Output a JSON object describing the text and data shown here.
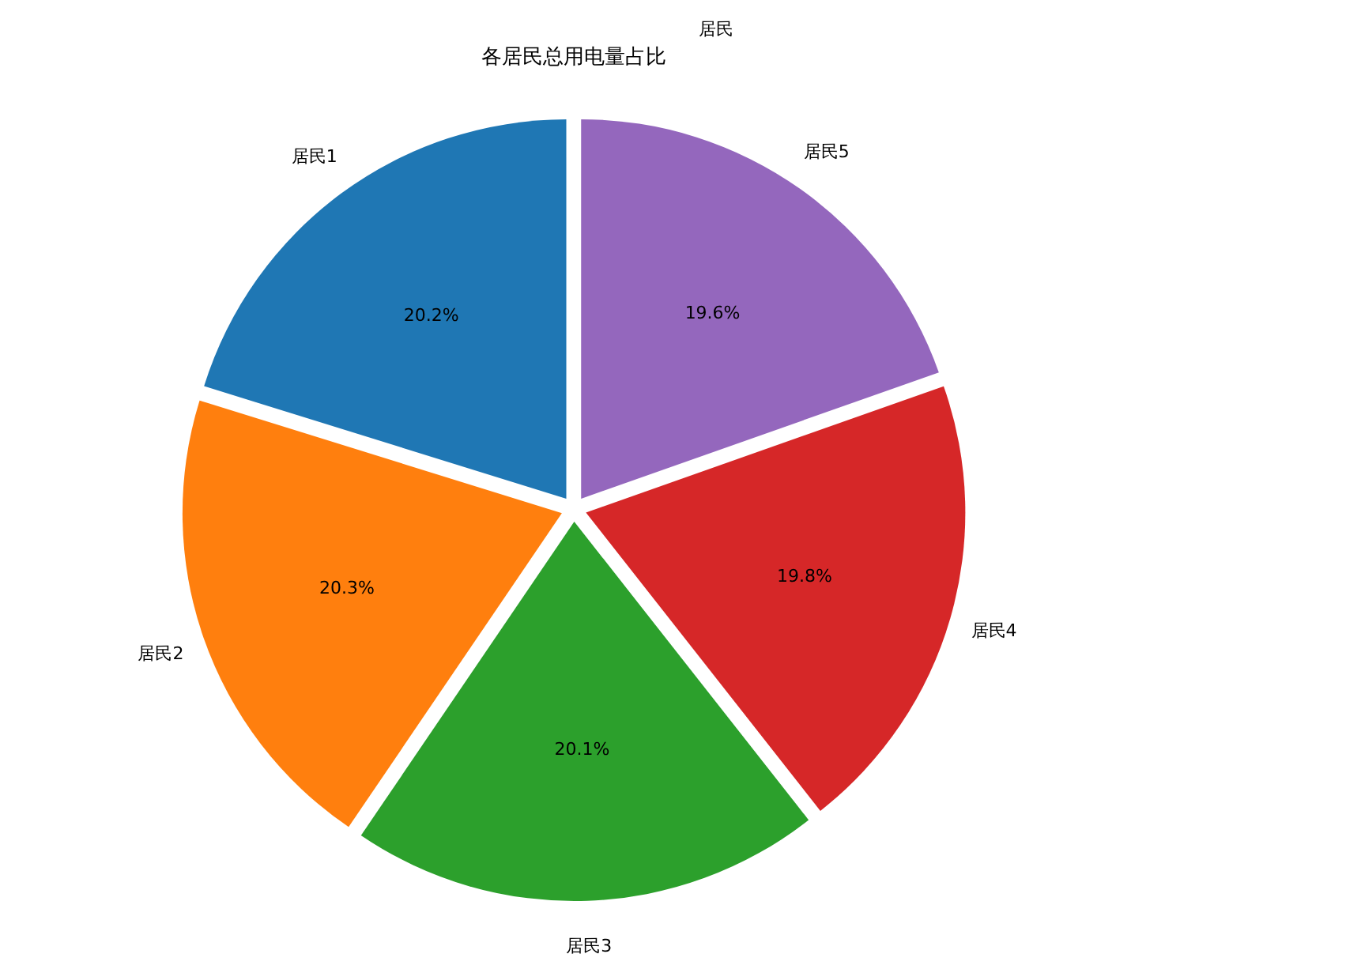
{
  "chart_data": {
    "type": "pie",
    "title": "各居民总用电量占比",
    "annotations": [
      "居民"
    ],
    "categories": [
      "居民1",
      "居民2",
      "居民3",
      "居民4",
      "居民5"
    ],
    "values": [
      20.2,
      20.3,
      20.1,
      19.8,
      19.6
    ],
    "colors": [
      "#1f77b4",
      "#ff7f0e",
      "#2ca02c",
      "#d62728",
      "#9467bd"
    ],
    "value_labels": [
      "20.2%",
      "20.3%",
      "20.1%",
      "19.8%",
      "19.6%"
    ]
  }
}
